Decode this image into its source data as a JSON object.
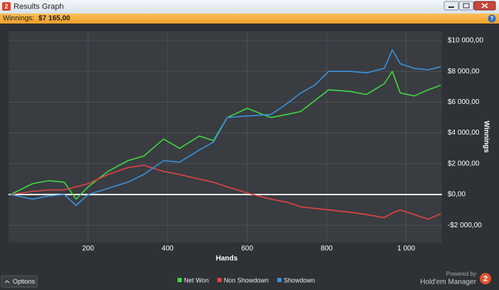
{
  "window": {
    "badge": "2",
    "title": "Results Graph"
  },
  "summary": {
    "label": "Winnings:",
    "value": "$7 165,00",
    "help": "?"
  },
  "chart_data": {
    "type": "line",
    "x_label": "Hands",
    "y_label": "Winnings",
    "x": [
      5,
      60,
      100,
      140,
      170,
      200,
      250,
      300,
      340,
      390,
      430,
      480,
      515,
      550,
      600,
      660,
      700,
      735,
      770,
      805,
      860,
      900,
      945,
      965,
      985,
      1020,
      1055,
      1087
    ],
    "series": [
      {
        "name": "Net Won",
        "color": "#3fd83f",
        "values": [
          0,
          700,
          900,
          800,
          -300,
          500,
          1500,
          2200,
          2500,
          3600,
          3000,
          3800,
          3500,
          5000,
          5600,
          5000,
          5200,
          5400,
          6100,
          6800,
          6700,
          6500,
          7200,
          8000,
          6600,
          6400,
          6800,
          7100
        ]
      },
      {
        "name": "Non Showdown",
        "color": "#e24444",
        "values": [
          0,
          200,
          300,
          300,
          500,
          700,
          1300,
          1750,
          1900,
          1500,
          1300,
          1000,
          800,
          500,
          100,
          -300,
          -500,
          -800,
          -900,
          -1000,
          -1150,
          -1300,
          -1500,
          -1200,
          -1000,
          -1300,
          -1600,
          -1250
        ]
      },
      {
        "name": "Showdown",
        "color": "#3a92dc",
        "values": [
          0,
          -300,
          -100,
          0,
          -700,
          0,
          400,
          800,
          1300,
          2200,
          2100,
          2900,
          3400,
          5000,
          5100,
          5200,
          5900,
          6600,
          7100,
          8000,
          8000,
          7900,
          8200,
          9400,
          8500,
          8200,
          8100,
          8300
        ]
      }
    ],
    "xlim": [
      0,
      1090
    ],
    "ylim": [
      -3100,
      10600
    ],
    "xticks": [
      200,
      400,
      600,
      800,
      {
        "value": 1000,
        "label": "1 000"
      }
    ],
    "yticks": [
      {
        "value": -2000,
        "label": "-$2 000,00"
      },
      {
        "value": 0,
        "label": "$0,00"
      },
      {
        "value": 2000,
        "label": "$2 000,00"
      },
      {
        "value": 4000,
        "label": "$4 000,00"
      },
      {
        "value": 6000,
        "label": "$6 000,00"
      },
      {
        "value": 8000,
        "label": "$8 000,00"
      },
      {
        "value": 10000,
        "label": "$10 000,00"
      }
    ],
    "grid": true
  },
  "footer": {
    "options": "Options",
    "powered_by": "Powered by",
    "product": "Hold'em Manager",
    "logo": "2"
  }
}
